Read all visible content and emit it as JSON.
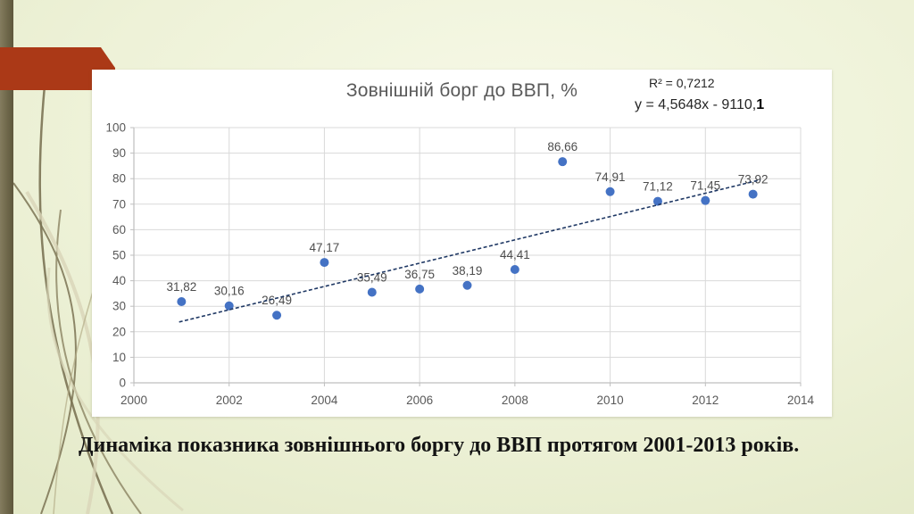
{
  "slide": {
    "caption": "Динаміка показника зовнішнього боргу до ВВП протягом 2001-2013 років."
  },
  "chart_data": {
    "type": "scatter",
    "title": "Зовнішній борг до ВВП, %",
    "x": [
      2001,
      2002,
      2003,
      2004,
      2005,
      2006,
      2007,
      2008,
      2009,
      2010,
      2011,
      2012,
      2013
    ],
    "values": [
      31.82,
      30.16,
      26.49,
      47.17,
      35.49,
      36.75,
      38.19,
      44.41,
      86.66,
      74.91,
      71.12,
      71.45,
      73.92
    ],
    "point_labels": [
      "31,82",
      "30,16",
      "26,49",
      "47,17",
      "35,49",
      "36,75",
      "38,19",
      "44,41",
      "86,66",
      "74,91",
      "71,12",
      "71,45",
      "73,92"
    ],
    "xlim": [
      2000,
      2014
    ],
    "ylim": [
      0,
      100
    ],
    "x_ticks": [
      2000,
      2002,
      2004,
      2006,
      2008,
      2010,
      2012,
      2014
    ],
    "y_ticks": [
      0,
      10,
      20,
      30,
      40,
      50,
      60,
      70,
      80,
      90,
      100
    ],
    "grid": true,
    "legend": "none",
    "annotations": {
      "r_squared": "R² = 0,7212",
      "equation": "y = 4,5648x - 9110,1",
      "equation_prefix": "y = 4,5648x - 9110,",
      "equation_bold_suffix": "1"
    },
    "trendline": {
      "slope": 4.5648,
      "intercept": -9110.1,
      "x_start": 2000.95,
      "x_end": 2013.15,
      "r_squared": 0.7212,
      "style": "dashed"
    },
    "colors": {
      "point": "#4472C4",
      "trend": "#1F3864",
      "grid": "#D9D9D9",
      "axis": "#BFBFBF",
      "tick_text": "#595959",
      "data_label_text": "#4D4D4D",
      "title_text": "#595959"
    }
  },
  "theme": {
    "accent_red": "#AB3917",
    "bar_olive": "#6E674A",
    "background": "#ECF0D6"
  }
}
